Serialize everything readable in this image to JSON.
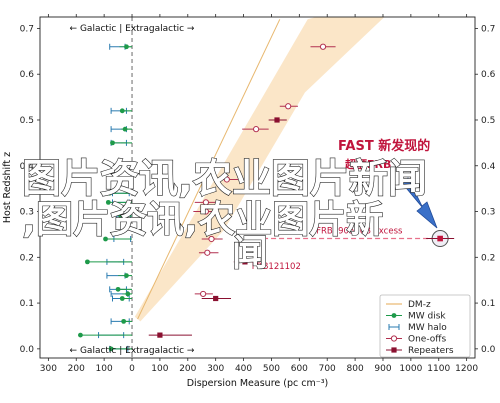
{
  "chart_data": {
    "type": "scatter",
    "xlabel": "Dispersion Measure (pc cm⁻³)",
    "ylabel": "Host Redshift z",
    "xlim": [
      -330,
      1230
    ],
    "ylim": [
      -0.02,
      0.725
    ],
    "x_ticks": [
      -300,
      -200,
      -100,
      0,
      100,
      200,
      300,
      400,
      500,
      600,
      700,
      800,
      900,
      1000,
      1100,
      1200
    ],
    "x_tick_labels": [
      "300",
      "200",
      "100",
      "0",
      "100",
      "200",
      "300",
      "400",
      "500",
      "600",
      "700",
      "800",
      "900",
      "1000",
      "1100",
      "1200"
    ],
    "y_ticks": [
      0.0,
      0.1,
      0.2,
      0.3,
      0.4,
      0.5,
      0.6,
      0.7
    ],
    "y_tick_labels": [
      "0.0",
      "0.1",
      "0.2",
      "0.3",
      "0.4",
      "0.5",
      "0.6",
      "0.7"
    ],
    "grid": false,
    "legend_position": "bottom-right",
    "top_annotation": "← Galactic | Extragalactic →",
    "bottom_annotation": "← Galactic | Extragalactic →",
    "mw_halo_errbars": [
      {
        "x": -45,
        "y": 0.66,
        "xmin": -80,
        "xmax": -25
      },
      {
        "x": -40,
        "y": 0.52,
        "xmin": -75,
        "xmax": -20
      },
      {
        "x": -40,
        "y": 0.48,
        "xmin": -75,
        "xmax": -20
      },
      {
        "x": -40,
        "y": 0.45,
        "xmin": -75,
        "xmax": -20
      },
      {
        "x": -30,
        "y": 0.34,
        "xmin": -70,
        "xmax": -10
      },
      {
        "x": -30,
        "y": 0.32,
        "xmin": -70,
        "xmax": -10
      },
      {
        "x": -20,
        "y": 0.29,
        "xmin": -55,
        "xmax": -5
      },
      {
        "x": -20,
        "y": 0.24,
        "xmin": -65,
        "xmax": -5
      },
      {
        "x": -50,
        "y": 0.19,
        "xmin": -90,
        "xmax": -30
      },
      {
        "x": -50,
        "y": 0.16,
        "xmin": -90,
        "xmax": -25
      },
      {
        "x": -40,
        "y": 0.13,
        "xmin": -80,
        "xmax": -20
      },
      {
        "x": -35,
        "y": 0.12,
        "xmin": -75,
        "xmax": -15
      },
      {
        "x": -30,
        "y": 0.11,
        "xmin": -70,
        "xmax": -10
      },
      {
        "x": -35,
        "y": 0.06,
        "xmin": -75,
        "xmax": -10
      },
      {
        "x": -60,
        "y": 0.03,
        "xmin": -120,
        "xmax": -30
      },
      {
        "x": -40,
        "y": 0.0,
        "xmin": -80,
        "xmax": -15
      }
    ],
    "mw_disk": [
      {
        "x": -20,
        "y": 0.66
      },
      {
        "x": -35,
        "y": 0.52
      },
      {
        "x": -25,
        "y": 0.48
      },
      {
        "x": -70,
        "y": 0.45
      },
      {
        "x": -80,
        "y": 0.34
      },
      {
        "x": -85,
        "y": 0.32
      },
      {
        "x": -40,
        "y": 0.29
      },
      {
        "x": -95,
        "y": 0.24
      },
      {
        "x": -160,
        "y": 0.19
      },
      {
        "x": -20,
        "y": 0.16
      },
      {
        "x": -50,
        "y": 0.13
      },
      {
        "x": -15,
        "y": 0.12
      },
      {
        "x": -35,
        "y": 0.11
      },
      {
        "x": -30,
        "y": 0.06
      },
      {
        "x": -185,
        "y": 0.03
      },
      {
        "x": -75,
        "y": 0.0
      }
    ],
    "dm_z_band": {
      "upper": [
        [
          10,
          0.07
        ],
        [
          630,
          0.72
        ]
      ],
      "lower": [
        [
          30,
          0.06
        ],
        [
          330,
          0.26
        ],
        [
          620,
          0.56
        ],
        [
          1000,
          0.78
        ]
      ],
      "mean": [
        [
          20,
          0.065
        ],
        [
          530,
          0.72
        ]
      ]
    },
    "one_offs": [
      {
        "x": 685,
        "y": 0.66,
        "xmin": 640,
        "xmax": 730
      },
      {
        "x": 560,
        "y": 0.53,
        "xmin": 530,
        "xmax": 595
      },
      {
        "x": 445,
        "y": 0.48,
        "xmin": 395,
        "xmax": 490
      },
      {
        "x": 340,
        "y": 0.37,
        "xmin": 300,
        "xmax": 380
      },
      {
        "x": 265,
        "y": 0.32,
        "xmin": 225,
        "xmax": 305
      },
      {
        "x": 265,
        "y": 0.3,
        "xmin": 220,
        "xmax": 300
      },
      {
        "x": 285,
        "y": 0.24,
        "xmin": 250,
        "xmax": 325
      },
      {
        "x": 270,
        "y": 0.21,
        "xmin": 240,
        "xmax": 310
      },
      {
        "x": 255,
        "y": 0.12,
        "xmin": 225,
        "xmax": 290
      }
    ],
    "repeaters": [
      {
        "x": 520,
        "y": 0.5,
        "xmin": 490,
        "xmax": 555
      },
      {
        "x": 405,
        "y": 0.19,
        "xmin": 365,
        "xmax": 445
      },
      {
        "x": 300,
        "y": 0.11,
        "xmin": 250,
        "xmax": 355
      },
      {
        "x": 100,
        "y": 0.03,
        "xmin": 60,
        "xmax": 215
      }
    ],
    "highlight": {
      "name": "FRB190520B",
      "x": 1105,
      "y": 0.241,
      "label": "FRB190520B excess",
      "dashed_from_x": 470
    },
    "label_frb121102": {
      "text": "FRB121102",
      "x": 365,
      "y": 0.19
    },
    "fast_label": "FAST 新发现的",
    "fast_label_2": "超额FRB",
    "legend": [
      {
        "name": "DM-z",
        "marker": "line",
        "color": "#e8b870"
      },
      {
        "name": "MW disk",
        "marker": "dot",
        "color": "#1e9a4a"
      },
      {
        "name": "MW halo",
        "marker": "errbar",
        "color": "#2a7bb0"
      },
      {
        "name": "One-offs",
        "marker": "open-circle",
        "color": "#b23050"
      },
      {
        "name": "Repeaters",
        "marker": "square",
        "color": "#8a1030"
      }
    ],
    "colors": {
      "band_fill": "#fbe3c2",
      "band_line": "#e8b870",
      "disk": "#1e9a4a",
      "halo": "#2a7bb0",
      "one_off": "#b23050",
      "repeater": "#8a1030",
      "highlight": "#c0143c",
      "arrow": "#3a70c8"
    },
    "overlay_watermark": {
      "line1": "图片资讯,农业图片新闻",
      "line2": ",图片资讯,农业图片新",
      "line3": "闻"
    }
  }
}
